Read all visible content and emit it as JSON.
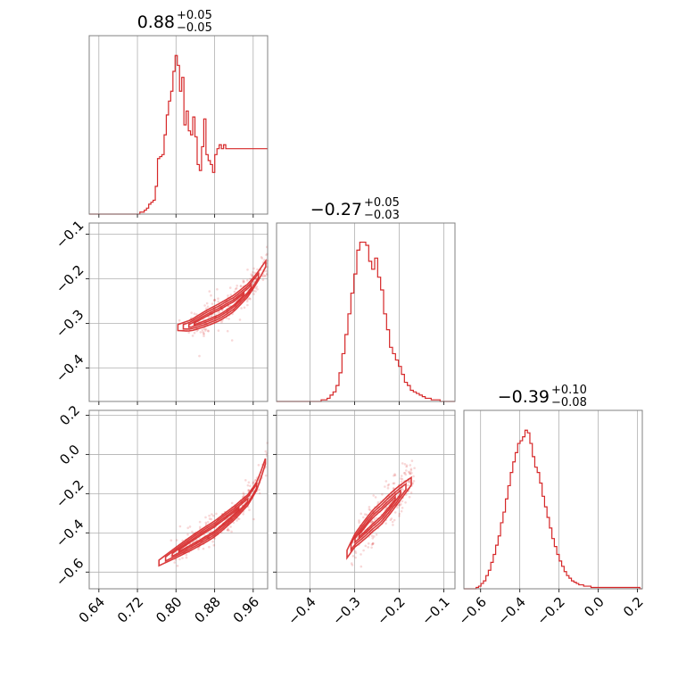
{
  "chart_data": {
    "type": "corner",
    "color": "#d62728",
    "grid": true,
    "parameters": [
      {
        "title": {
          "median": "0.88",
          "plus": "+0.05",
          "minus": "−0.05"
        },
        "range": [
          0.62,
          0.99
        ],
        "ticks": [
          0.64,
          0.72,
          0.8,
          0.88,
          0.96
        ],
        "tick_labels": [
          "0.64",
          "0.72",
          "0.80",
          "0.88",
          "0.96"
        ]
      },
      {
        "title": {
          "median": "−0.27",
          "plus": "+0.05",
          "minus": "−0.03"
        },
        "range": [
          -0.475,
          -0.075
        ],
        "ticks": [
          -0.4,
          -0.3,
          -0.2,
          -0.1
        ],
        "tick_labels": [
          "−0.4",
          "−0.3",
          "−0.2",
          "−0.1"
        ]
      },
      {
        "title": {
          "median": "−0.39",
          "plus": "+0.10",
          "minus": "−0.08"
        },
        "range": [
          -0.685,
          0.225
        ],
        "ticks": [
          -0.6,
          -0.4,
          -0.2,
          0.0,
          0.2
        ],
        "tick_labels": [
          "−0.6",
          "−0.4",
          "−0.2",
          "0.0",
          "0.2"
        ]
      }
    ],
    "histograms": [
      {
        "param": 0,
        "bin_range": [
          0.62,
          0.99
        ],
        "counts": [
          0,
          0,
          0,
          0,
          0,
          0,
          0,
          0,
          0,
          0,
          0,
          0,
          0,
          0,
          0,
          0,
          0,
          0,
          0,
          0,
          0,
          0,
          0,
          1,
          1,
          2,
          3,
          5,
          6,
          7,
          14,
          28,
          29,
          30,
          40,
          50,
          57,
          62,
          72,
          80,
          75,
          62,
          69,
          45,
          52,
          42,
          40,
          49,
          39,
          25,
          22,
          34,
          48,
          30,
          27,
          25,
          21,
          30,
          33,
          35,
          33,
          35,
          33,
          33,
          33,
          33,
          33,
          33,
          33,
          33,
          33,
          33,
          33,
          33,
          33,
          33,
          33,
          33,
          33,
          33,
          33
        ],
        "ylim": [
          0,
          90
        ]
      },
      {
        "param": 1,
        "bin_range": [
          -0.475,
          -0.075
        ],
        "counts": [
          0,
          0,
          0,
          0,
          0,
          0,
          0,
          0,
          0,
          0,
          0,
          0,
          0,
          0,
          0,
          1,
          1,
          2,
          4,
          6,
          10,
          18,
          30,
          42,
          55,
          68,
          80,
          95,
          100,
          100,
          98,
          88,
          83,
          90,
          78,
          70,
          55,
          45,
          34,
          30,
          26,
          22,
          17,
          12,
          10,
          7,
          6,
          5,
          4,
          3,
          2,
          2,
          1,
          1,
          1,
          0,
          0,
          0,
          0,
          0
        ],
        "ylim": [
          0,
          112
        ]
      },
      {
        "param": 2,
        "bin_range": [
          -0.685,
          0.225
        ],
        "counts": [
          0,
          0,
          0,
          0,
          0,
          1,
          2,
          4,
          6,
          10,
          14,
          20,
          26,
          33,
          40,
          50,
          58,
          68,
          78,
          88,
          96,
          103,
          110,
          112,
          115,
          120,
          118,
          110,
          100,
          92,
          88,
          80,
          70,
          62,
          54,
          46,
          38,
          32,
          26,
          21,
          17,
          13,
          10,
          8,
          6,
          5,
          4,
          3,
          3,
          2,
          2,
          2,
          1,
          1,
          1,
          1,
          1,
          1,
          1,
          1,
          1,
          1,
          1,
          1,
          1,
          1,
          1,
          1,
          1,
          1,
          1,
          1,
          0
        ],
        "ylim": [
          0,
          135
        ]
      }
    ],
    "scatter_panels": [
      {
        "x_param": 0,
        "y_param": 1,
        "ridge_x": [
          0.8,
          0.83,
          0.86,
          0.89,
          0.92,
          0.95,
          0.97,
          0.99
        ],
        "ridge_y": [
          -0.31,
          -0.305,
          -0.29,
          -0.275,
          -0.255,
          -0.225,
          -0.195,
          -0.16
        ],
        "spread": 0.012
      },
      {
        "x_param": 0,
        "y_param": 2,
        "ridge_x": [
          0.76,
          0.8,
          0.84,
          0.88,
          0.92,
          0.95,
          0.97,
          0.99
        ],
        "ridge_y": [
          -0.56,
          -0.5,
          -0.44,
          -0.38,
          -0.3,
          -0.23,
          -0.15,
          0.0
        ],
        "spread": 0.025
      },
      {
        "x_param": 1,
        "y_param": 2,
        "ridge_x": [
          -0.32,
          -0.3,
          -0.28,
          -0.26,
          -0.24,
          -0.22,
          -0.2,
          -0.17
        ],
        "ridge_y": [
          -0.52,
          -0.44,
          -0.39,
          -0.34,
          -0.3,
          -0.25,
          -0.2,
          -0.13
        ],
        "spread": 0.035
      }
    ]
  }
}
